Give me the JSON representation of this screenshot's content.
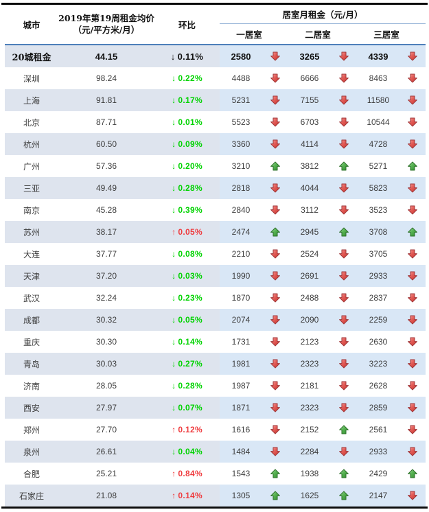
{
  "header": {
    "city": "城市",
    "avg_price_line1": "2019年第19周租金均价",
    "avg_price_line2": "（元/平方米/月）",
    "wow": "环比",
    "bedroom_title": "居室月租金（元/月）",
    "bedroom_cols": [
      "一居室",
      "二居室",
      "三居室"
    ]
  },
  "colors": {
    "green": "#00d300",
    "red": "#ef3b3e",
    "row_blue_left": "#dee4ee",
    "row_blue_right": "#d9e7f6",
    "header_line": "#4e7fba",
    "sub_line": "#95b3d7"
  },
  "chart_data": {
    "type": "table",
    "columns": [
      "城市",
      "2019年第19周租金均价（元/平方米/月）",
      "环比",
      "一居室",
      "二居室",
      "三居室"
    ],
    "column_group": {
      "label": "居室月租金（元/月）",
      "spans": [
        "一居室",
        "二居室",
        "三居室"
      ]
    },
    "rows": [
      {
        "city": "20城租金",
        "avg_price": "44.15",
        "wow": {
          "dir": "down",
          "pct": "0.11%"
        },
        "bedrooms": [
          {
            "rent": 2580,
            "trend": "down"
          },
          {
            "rent": 3265,
            "trend": "down"
          },
          {
            "rent": 4339,
            "trend": "down"
          }
        ],
        "emphasis": true
      },
      {
        "city": "深圳",
        "avg_price": "98.24",
        "wow": {
          "dir": "down",
          "pct": "0.22%"
        },
        "bedrooms": [
          {
            "rent": 4488,
            "trend": "down"
          },
          {
            "rent": 6666,
            "trend": "down"
          },
          {
            "rent": 8463,
            "trend": "down"
          }
        ],
        "emphasis": false
      },
      {
        "city": "上海",
        "avg_price": "91.81",
        "wow": {
          "dir": "down",
          "pct": "0.17%"
        },
        "bedrooms": [
          {
            "rent": 5231,
            "trend": "down"
          },
          {
            "rent": 7155,
            "trend": "down"
          },
          {
            "rent": 11580,
            "trend": "down"
          }
        ],
        "emphasis": false
      },
      {
        "city": "北京",
        "avg_price": "87.71",
        "wow": {
          "dir": "down",
          "pct": "0.01%"
        },
        "bedrooms": [
          {
            "rent": 5523,
            "trend": "down"
          },
          {
            "rent": 6703,
            "trend": "down"
          },
          {
            "rent": 10544,
            "trend": "down"
          }
        ],
        "emphasis": false
      },
      {
        "city": "杭州",
        "avg_price": "60.50",
        "wow": {
          "dir": "down",
          "pct": "0.09%"
        },
        "bedrooms": [
          {
            "rent": 3360,
            "trend": "down"
          },
          {
            "rent": 4114,
            "trend": "down"
          },
          {
            "rent": 4728,
            "trend": "down"
          }
        ],
        "emphasis": false
      },
      {
        "city": "广州",
        "avg_price": "57.36",
        "wow": {
          "dir": "down",
          "pct": "0.20%"
        },
        "bedrooms": [
          {
            "rent": 3210,
            "trend": "up"
          },
          {
            "rent": 3812,
            "trend": "up"
          },
          {
            "rent": 5271,
            "trend": "up"
          }
        ],
        "emphasis": false
      },
      {
        "city": "三亚",
        "avg_price": "49.49",
        "wow": {
          "dir": "down",
          "pct": "0.28%"
        },
        "bedrooms": [
          {
            "rent": 2818,
            "trend": "down"
          },
          {
            "rent": 4044,
            "trend": "down"
          },
          {
            "rent": 5823,
            "trend": "down"
          }
        ],
        "emphasis": false
      },
      {
        "city": "南京",
        "avg_price": "45.28",
        "wow": {
          "dir": "down",
          "pct": "0.39%"
        },
        "bedrooms": [
          {
            "rent": 2840,
            "trend": "down"
          },
          {
            "rent": 3112,
            "trend": "down"
          },
          {
            "rent": 3523,
            "trend": "down"
          }
        ],
        "emphasis": false
      },
      {
        "city": "苏州",
        "avg_price": "38.17",
        "wow": {
          "dir": "up",
          "pct": "0.05%"
        },
        "bedrooms": [
          {
            "rent": 2474,
            "trend": "up"
          },
          {
            "rent": 2945,
            "trend": "up"
          },
          {
            "rent": 3708,
            "trend": "up"
          }
        ],
        "emphasis": false
      },
      {
        "city": "大连",
        "avg_price": "37.77",
        "wow": {
          "dir": "down",
          "pct": "0.08%"
        },
        "bedrooms": [
          {
            "rent": 2210,
            "trend": "down"
          },
          {
            "rent": 2524,
            "trend": "down"
          },
          {
            "rent": 3705,
            "trend": "down"
          }
        ],
        "emphasis": false
      },
      {
        "city": "天津",
        "avg_price": "37.20",
        "wow": {
          "dir": "down",
          "pct": "0.03%"
        },
        "bedrooms": [
          {
            "rent": 1990,
            "trend": "down"
          },
          {
            "rent": 2691,
            "trend": "down"
          },
          {
            "rent": 2933,
            "trend": "down"
          }
        ],
        "emphasis": false
      },
      {
        "city": "武汉",
        "avg_price": "32.24",
        "wow": {
          "dir": "down",
          "pct": "0.23%"
        },
        "bedrooms": [
          {
            "rent": 1870,
            "trend": "down"
          },
          {
            "rent": 2488,
            "trend": "down"
          },
          {
            "rent": 2837,
            "trend": "down"
          }
        ],
        "emphasis": false
      },
      {
        "city": "成都",
        "avg_price": "30.32",
        "wow": {
          "dir": "down",
          "pct": "0.05%"
        },
        "bedrooms": [
          {
            "rent": 2074,
            "trend": "down"
          },
          {
            "rent": 2090,
            "trend": "down"
          },
          {
            "rent": 2259,
            "trend": "down"
          }
        ],
        "emphasis": false
      },
      {
        "city": "重庆",
        "avg_price": "30.30",
        "wow": {
          "dir": "down",
          "pct": "0.14%"
        },
        "bedrooms": [
          {
            "rent": 1731,
            "trend": "down"
          },
          {
            "rent": 2123,
            "trend": "down"
          },
          {
            "rent": 2630,
            "trend": "down"
          }
        ],
        "emphasis": false
      },
      {
        "city": "青岛",
        "avg_price": "30.03",
        "wow": {
          "dir": "down",
          "pct": "0.27%"
        },
        "bedrooms": [
          {
            "rent": 1981,
            "trend": "down"
          },
          {
            "rent": 2323,
            "trend": "down"
          },
          {
            "rent": 3223,
            "trend": "down"
          }
        ],
        "emphasis": false
      },
      {
        "city": "济南",
        "avg_price": "28.05",
        "wow": {
          "dir": "down",
          "pct": "0.28%"
        },
        "bedrooms": [
          {
            "rent": 1987,
            "trend": "down"
          },
          {
            "rent": 2181,
            "trend": "down"
          },
          {
            "rent": 2628,
            "trend": "down"
          }
        ],
        "emphasis": false
      },
      {
        "city": "西安",
        "avg_price": "27.97",
        "wow": {
          "dir": "down",
          "pct": "0.07%"
        },
        "bedrooms": [
          {
            "rent": 1871,
            "trend": "down"
          },
          {
            "rent": 2323,
            "trend": "down"
          },
          {
            "rent": 2859,
            "trend": "down"
          }
        ],
        "emphasis": false
      },
      {
        "city": "郑州",
        "avg_price": "27.70",
        "wow": {
          "dir": "up",
          "pct": "0.12%"
        },
        "bedrooms": [
          {
            "rent": 1616,
            "trend": "down"
          },
          {
            "rent": 2152,
            "trend": "up"
          },
          {
            "rent": 2561,
            "trend": "down"
          }
        ],
        "emphasis": false
      },
      {
        "city": "泉州",
        "avg_price": "26.61",
        "wow": {
          "dir": "down",
          "pct": "0.04%"
        },
        "bedrooms": [
          {
            "rent": 1484,
            "trend": "down"
          },
          {
            "rent": 2284,
            "trend": "down"
          },
          {
            "rent": 2933,
            "trend": "down"
          }
        ],
        "emphasis": false
      },
      {
        "city": "合肥",
        "avg_price": "25.21",
        "wow": {
          "dir": "up",
          "pct": "0.84%"
        },
        "bedrooms": [
          {
            "rent": 1543,
            "trend": "up"
          },
          {
            "rent": 1938,
            "trend": "up"
          },
          {
            "rent": 2429,
            "trend": "up"
          }
        ],
        "emphasis": false
      },
      {
        "city": "石家庄",
        "avg_price": "21.08",
        "wow": {
          "dir": "up",
          "pct": "0.14%"
        },
        "bedrooms": [
          {
            "rent": 1305,
            "trend": "up"
          },
          {
            "rent": 1625,
            "trend": "up"
          },
          {
            "rent": 2147,
            "trend": "down"
          }
        ],
        "emphasis": false
      }
    ]
  }
}
